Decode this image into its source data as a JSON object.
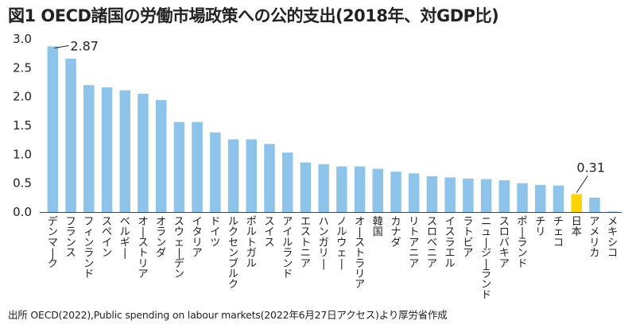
{
  "chart_data": {
    "type": "bar",
    "title": "図1 OECD諸国の労働市場政策への公的支出(2018年、対GDP比)",
    "source": "出所 OECD(2022),Public spending on labour markets(2022年6月27日アクセス)より厚労省作成",
    "ylim": [
      0,
      3.0
    ],
    "yticks": [
      "0.0",
      "0.5",
      "1.0",
      "1.5",
      "2.0",
      "2.5",
      "3.0"
    ],
    "categories": [
      "デンマーク",
      "フランス",
      "フィンランド",
      "スペイン",
      "ベルギー",
      "オーストリア",
      "オランダ",
      "スウェーデン",
      "イタリア",
      "ドイツ",
      "ルクセンブルク",
      "ポルトガル",
      "スイス",
      "アイルランド",
      "エストニア",
      "ハンガリー",
      "ノルウェー",
      "オーストラリア",
      "韓国",
      "カナダ",
      "リトアニア",
      "スロベニア",
      "イスラエル",
      "ラトビア",
      "ニュージーランド",
      "スロバキア",
      "ポーランド",
      "チリ",
      "チェコ",
      "日本",
      "アメリカ",
      "メキシコ"
    ],
    "values": [
      2.87,
      2.66,
      2.2,
      2.16,
      2.11,
      2.05,
      1.94,
      1.56,
      1.56,
      1.38,
      1.26,
      1.26,
      1.18,
      1.03,
      0.86,
      0.83,
      0.79,
      0.79,
      0.75,
      0.7,
      0.67,
      0.62,
      0.6,
      0.58,
      0.57,
      0.55,
      0.5,
      0.47,
      0.46,
      0.31,
      0.25,
      0.01
    ],
    "highlight": "日本",
    "annotations": [
      {
        "category": "デンマーク",
        "label": "2.87"
      },
      {
        "category": "日本",
        "label": "0.31"
      }
    ],
    "colors": {
      "bar": "#8ec4ea",
      "highlight": "#ffd400",
      "axis": "#444444"
    }
  }
}
